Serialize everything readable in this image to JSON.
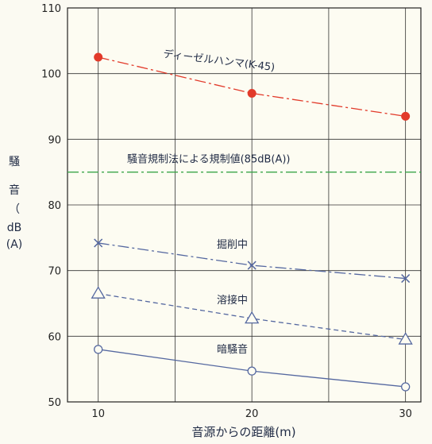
{
  "chart_data": {
    "type": "line",
    "x": [
      10,
      20,
      30
    ],
    "xticks": [
      "10",
      "20",
      "30"
    ],
    "yticks": [
      "110",
      "100",
      "90",
      "80",
      "70",
      "60",
      "50"
    ],
    "xlim": [
      8,
      31
    ],
    "ylim": [
      50,
      110
    ],
    "xlabel": "音源からの距離(m)",
    "ylabel_chars": [
      "騒",
      "音",
      "（",
      "dB",
      "(A)"
    ],
    "grid": true,
    "series": [
      {
        "name": "ディーゼルハンマ(K-45)",
        "values": [
          102.5,
          97,
          93.5
        ],
        "color": "#e23a2a",
        "marker": "filled-circle",
        "line": "dashdot"
      },
      {
        "name": "掘削中",
        "values": [
          74.2,
          70.8,
          68.8
        ],
        "color": "#5568a0",
        "marker": "x",
        "line": "dashdot"
      },
      {
        "name": "溶接中",
        "values": [
          66.5,
          62.7,
          59.5
        ],
        "color": "#5568a0",
        "marker": "triangle",
        "line": "dashed"
      },
      {
        "name": "暗騒音",
        "values": [
          58.0,
          54.7,
          52.3
        ],
        "color": "#5568a0",
        "marker": "circle",
        "line": "solid"
      }
    ],
    "reference_line": {
      "label": "騒音規制法による規制値(85dB(A))",
      "value": 85,
      "color": "#3aa54a"
    }
  }
}
